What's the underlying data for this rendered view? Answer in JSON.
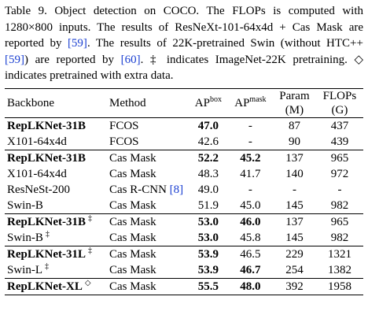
{
  "caption": {
    "label": "Table 9.",
    "parts": [
      "Object detection on COCO. The FLOPs is computed with 1280×800 inputs. The results of ResNeXt-101-64x4d + Cas Mask are reported by ",
      "[59]",
      ". The results of 22K-pretrained Swin (without HTC++ ",
      "[59]",
      ") are reported by ",
      "[60]",
      ". ‡ indicates ImageNet-22K pretraining. ◇ indicates pretrained with extra data."
    ]
  },
  "table": {
    "headers": {
      "backbone": "Backbone",
      "method": "Method",
      "ap_box": "AP",
      "ap_box_sup": "box",
      "ap_mask": "AP",
      "ap_mask_sup": "mask",
      "param": "Param",
      "param_unit": "(M)",
      "flops": "FLOPs",
      "flops_unit": "(G)"
    },
    "rows": [
      {
        "backbone": "RepLKNet-31B",
        "mark": "",
        "method": "FCOS",
        "cite": "",
        "ap_box": "47.0",
        "ap_mask": "-",
        "param": "87",
        "flops": "437"
      },
      {
        "backbone": "X101-64x4d",
        "mark": "",
        "method": "FCOS",
        "cite": "",
        "ap_box": "42.6",
        "ap_mask": "-",
        "param": "90",
        "flops": "439"
      },
      {
        "backbone": "RepLKNet-31B",
        "mark": "",
        "method": "Cas Mask",
        "cite": "",
        "ap_box": "52.2",
        "ap_mask": "45.2",
        "param": "137",
        "flops": "965"
      },
      {
        "backbone": "X101-64x4d",
        "mark": "",
        "method": "Cas Mask",
        "cite": "",
        "ap_box": "48.3",
        "ap_mask": "41.7",
        "param": "140",
        "flops": "972"
      },
      {
        "backbone": "ResNeSt-200",
        "mark": "",
        "method": "Cas R-CNN",
        "cite": "[8]",
        "ap_box": "49.0",
        "ap_mask": "-",
        "param": "-",
        "flops": "-"
      },
      {
        "backbone": "Swin-B",
        "mark": "",
        "method": "Cas Mask",
        "cite": "",
        "ap_box": "51.9",
        "ap_mask": "45.0",
        "param": "145",
        "flops": "982"
      },
      {
        "backbone": "RepLKNet-31B",
        "mark": "‡",
        "method": "Cas Mask",
        "cite": "",
        "ap_box": "53.0",
        "ap_mask": "46.0",
        "param": "137",
        "flops": "965"
      },
      {
        "backbone": "Swin-B",
        "mark": "‡",
        "method": "Cas Mask",
        "cite": "",
        "ap_box": "53.0",
        "ap_mask": "45.8",
        "param": "145",
        "flops": "982"
      },
      {
        "backbone": "RepLKNet-31L",
        "mark": "‡",
        "method": "Cas Mask",
        "cite": "",
        "ap_box": "53.9",
        "ap_mask": "46.5",
        "param": "229",
        "flops": "1321"
      },
      {
        "backbone": "Swin-L",
        "mark": "‡",
        "method": "Cas Mask",
        "cite": "",
        "ap_box": "53.9",
        "ap_mask": "46.7",
        "param": "254",
        "flops": "1382"
      },
      {
        "backbone": "RepLKNet-XL",
        "mark": "◇",
        "method": "Cas Mask",
        "cite": "",
        "ap_box": "55.5",
        "ap_mask": "48.0",
        "param": "392",
        "flops": "1958"
      }
    ]
  }
}
